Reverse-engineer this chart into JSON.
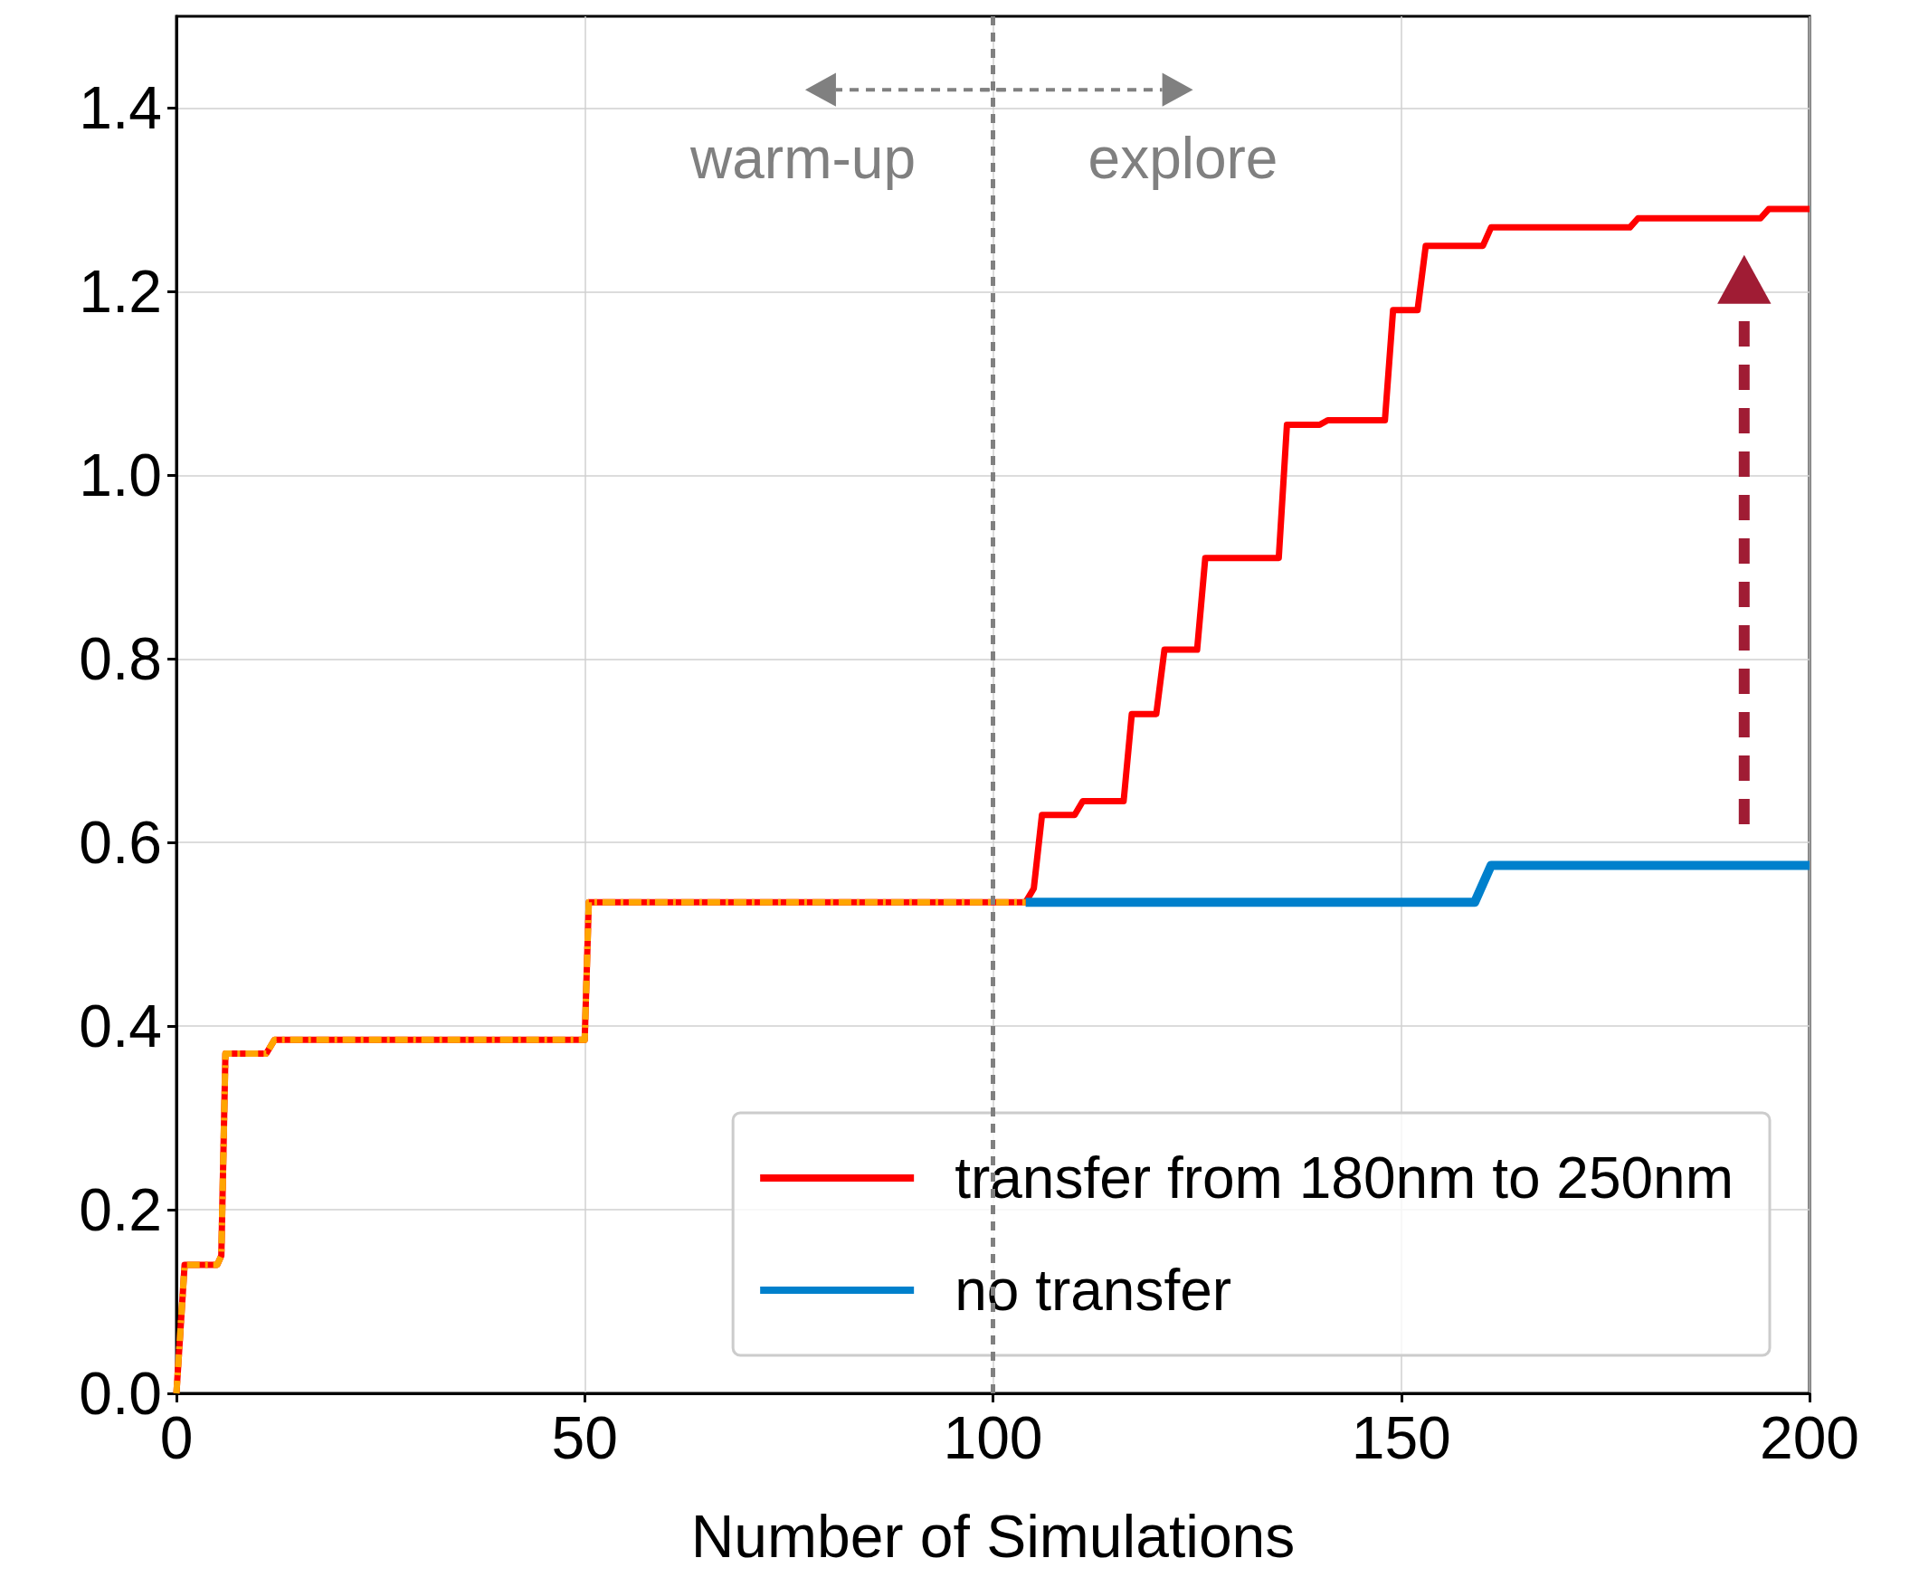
{
  "chart_data": {
    "type": "line",
    "xlabel": "Number of Simulations",
    "xlim": [
      0,
      200
    ],
    "xticks": [
      0,
      50,
      100,
      150,
      200
    ],
    "ylim": [
      0,
      1.5
    ],
    "yticks": [
      {
        "value": 0,
        "label": "0.0"
      },
      {
        "value": 0.2,
        "label": "0.2"
      },
      {
        "value": 0.4,
        "label": "0.4"
      },
      {
        "value": 0.6,
        "label": "0.6"
      },
      {
        "value": 0.8,
        "label": "0.8"
      },
      {
        "value": 1.0,
        "label": "1.0"
      },
      {
        "value": 1.2,
        "label": "1.2"
      },
      {
        "value": 1.4,
        "label": "1.4"
      }
    ],
    "grid": true,
    "legend": "bottom right",
    "marker": "none",
    "line_style": "solid",
    "series": [
      {
        "name": "transfer from 180nm to 250nm",
        "color": "#ff0000",
        "x": [
          0,
          1,
          5,
          5.5,
          6,
          11,
          12,
          50,
          50.5,
          104,
          105,
          106,
          110,
          111,
          116,
          117,
          120,
          121,
          125,
          126,
          135,
          136,
          140,
          141,
          148,
          149,
          152,
          153,
          160,
          161,
          178,
          179,
          194,
          195,
          200
        ],
        "values": [
          0,
          0.14,
          0.14,
          0.15,
          0.37,
          0.37,
          0.385,
          0.385,
          0.535,
          0.535,
          0.55,
          0.63,
          0.63,
          0.645,
          0.645,
          0.74,
          0.74,
          0.81,
          0.81,
          0.91,
          0.91,
          1.055,
          1.055,
          1.06,
          1.06,
          1.18,
          1.18,
          1.25,
          1.25,
          1.27,
          1.27,
          1.28,
          1.28,
          1.29,
          1.29
        ]
      },
      {
        "name": "no transfer",
        "color": "#0080cc",
        "x": [
          104,
          159,
          161,
          200
        ],
        "values": [
          0.535,
          0.535,
          0.575,
          0.575
        ]
      },
      {
        "color": "#ffa500",
        "line_style": "dashed",
        "x": [
          0,
          1,
          5,
          5.5,
          6,
          11,
          12,
          50,
          50.5,
          104
        ],
        "values": [
          0,
          0.14,
          0.14,
          0.15,
          0.37,
          0.37,
          0.385,
          0.385,
          0.535,
          0.535
        ]
      }
    ],
    "ref_lines": [
      {
        "axis": "x",
        "value": 100,
        "color": "#808080",
        "line_style": "dashed"
      }
    ],
    "annotations": [
      "warm-up",
      "explore"
    ]
  }
}
